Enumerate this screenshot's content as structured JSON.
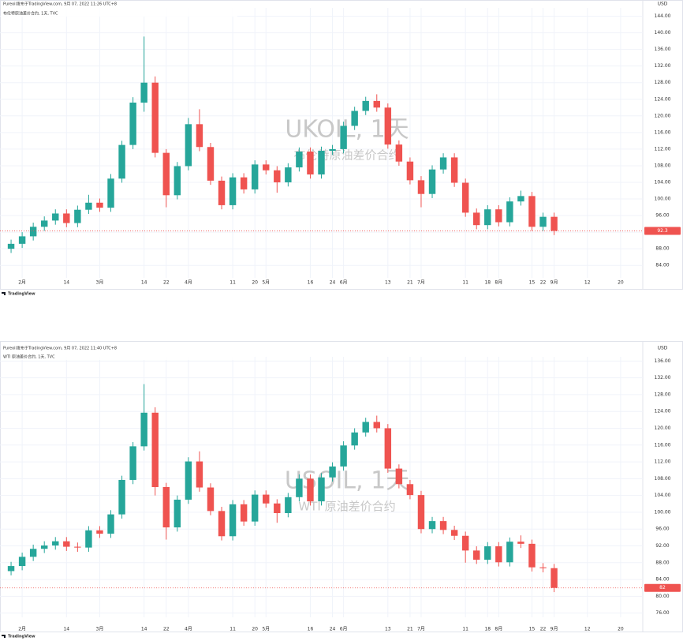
{
  "chart_data": [
    {
      "type": "candlestick",
      "title": "Pureoil发布于TradingView.com, 9月 07, 2022 11:26 UTC+8",
      "legend": "布伦特原油差价合约, 1天, TVC",
      "symbol": "UKOIL, 1天",
      "subtitle": "布伦特原油差价合约",
      "currency": "USD",
      "attribution": "TradingView",
      "up_color": "#26a69a",
      "down_color": "#ef5350",
      "grid": true,
      "candles": [
        [
          88.0,
          90.2,
          87.0,
          89.2
        ],
        [
          89.2,
          92.0,
          88.2,
          91.0
        ],
        [
          91.0,
          94.3,
          90.0,
          93.3
        ],
        [
          93.3,
          95.8,
          92.3,
          94.8
        ],
        [
          94.8,
          97.5,
          93.8,
          96.5
        ],
        [
          96.5,
          97.5,
          93.2,
          94.2
        ],
        [
          94.2,
          98.4,
          93.2,
          97.4
        ],
        [
          97.4,
          101.0,
          96.4,
          99.1
        ],
        [
          99.1,
          100.1,
          96.9,
          97.9
        ],
        [
          97.9,
          106.0,
          96.9,
          104.9
        ],
        [
          104.9,
          114.0,
          103.9,
          113.0
        ],
        [
          113.0,
          124.5,
          112.0,
          123.2
        ],
        [
          123.2,
          139.1,
          121.0,
          128.0
        ],
        [
          128.0,
          129.5,
          110.0,
          111.1
        ],
        [
          111.1,
          112.0,
          98.0,
          100.9
        ],
        [
          100.9,
          108.9,
          99.9,
          107.9
        ],
        [
          107.9,
          119.5,
          106.9,
          118.0
        ],
        [
          118.0,
          121.6,
          111.5,
          112.5
        ],
        [
          112.5,
          113.5,
          103.4,
          104.4
        ],
        [
          104.4,
          105.4,
          97.5,
          98.5
        ],
        [
          98.5,
          106.2,
          97.5,
          105.2
        ],
        [
          105.2,
          106.2,
          101.3,
          102.3
        ],
        [
          102.3,
          109.3,
          101.3,
          108.3
        ],
        [
          108.3,
          109.3,
          105.9,
          106.9
        ],
        [
          106.9,
          107.9,
          101.5,
          104.0
        ],
        [
          104.0,
          108.6,
          103.0,
          107.6
        ],
        [
          107.6,
          112.4,
          106.6,
          111.4
        ],
        [
          111.4,
          112.4,
          104.9,
          105.9
        ],
        [
          105.9,
          112.6,
          104.9,
          111.6
        ],
        [
          111.6,
          113.0,
          110.6,
          112.0
        ],
        [
          112.0,
          118.6,
          111.0,
          117.6
        ],
        [
          117.6,
          122.2,
          116.6,
          121.2
        ],
        [
          121.2,
          124.6,
          120.2,
          123.6
        ],
        [
          123.6,
          125.2,
          121.0,
          122.0
        ],
        [
          122.0,
          123.0,
          112.1,
          113.1
        ],
        [
          113.1,
          114.1,
          108.0,
          109.0
        ],
        [
          109.0,
          110.0,
          103.5,
          104.5
        ],
        [
          104.5,
          105.5,
          98.0,
          101.2
        ],
        [
          101.2,
          108.1,
          100.2,
          107.1
        ],
        [
          107.1,
          111.0,
          106.1,
          110.0
        ],
        [
          110.0,
          111.0,
          102.9,
          103.9
        ],
        [
          103.9,
          104.9,
          95.7,
          96.7
        ],
        [
          96.7,
          97.7,
          92.7,
          93.7
        ],
        [
          93.7,
          98.5,
          92.7,
          97.5
        ],
        [
          97.5,
          98.5,
          93.4,
          94.4
        ],
        [
          94.4,
          100.4,
          93.4,
          99.4
        ],
        [
          99.4,
          102.0,
          98.4,
          100.7
        ],
        [
          100.7,
          101.7,
          92.3,
          93.3
        ],
        [
          93.3,
          96.7,
          92.3,
          95.7
        ],
        [
          95.7,
          96.7,
          91.3,
          92.3
        ]
      ],
      "ylim": [
        81,
        146
      ],
      "yticks": [
        {
          "value": 84,
          "label": "84.00"
        },
        {
          "value": 88,
          "label": "88.00"
        },
        {
          "value": 92,
          "label": "92.00"
        },
        {
          "value": 96,
          "label": "96.00"
        },
        {
          "value": 100,
          "label": "100.00"
        },
        {
          "value": 104,
          "label": "104.00"
        },
        {
          "value": 108,
          "label": "108.00"
        },
        {
          "value": 112,
          "label": "112.00"
        },
        {
          "value": 116,
          "label": "116.00"
        },
        {
          "value": 120,
          "label": "120.00"
        },
        {
          "value": 124,
          "label": "124.00"
        },
        {
          "value": 128,
          "label": "128.00"
        },
        {
          "value": 132,
          "label": "132.00"
        },
        {
          "value": 136,
          "label": "136.00"
        },
        {
          "value": 140,
          "label": "140.00"
        },
        {
          "value": 144,
          "label": "144.00"
        }
      ],
      "xlim": [
        -1,
        57
      ],
      "xticks": [
        {
          "value": 1,
          "label": "2月"
        },
        {
          "value": 5,
          "label": "14"
        },
        {
          "value": 8,
          "label": "3月"
        },
        {
          "value": 12,
          "label": "14"
        },
        {
          "value": 14,
          "label": "22"
        },
        {
          "value": 16,
          "label": "4月"
        },
        {
          "value": 20,
          "label": "11"
        },
        {
          "value": 22,
          "label": "20"
        },
        {
          "value": 23,
          "label": "5月"
        },
        {
          "value": 27,
          "label": "16"
        },
        {
          "value": 29,
          "label": "24"
        },
        {
          "value": 30,
          "label": "6月"
        },
        {
          "value": 34,
          "label": "13"
        },
        {
          "value": 36,
          "label": "21"
        },
        {
          "value": 37,
          "label": "7月"
        },
        {
          "value": 41,
          "label": "11"
        },
        {
          "value": 43,
          "label": "18"
        },
        {
          "value": 44,
          "label": "8月"
        },
        {
          "value": 47,
          "label": "15"
        },
        {
          "value": 48,
          "label": "22"
        },
        {
          "value": 49,
          "label": "9月"
        },
        {
          "value": 52,
          "label": "12"
        },
        {
          "value": 55,
          "label": "20"
        }
      ]
    },
    {
      "type": "candlestick",
      "title": "Pureoil发布于TradingView.com, 9月 07, 2022 11:40 UTC+8",
      "legend": "WTI 原油差价合约, 1天, TVC",
      "symbol": "USOIL, 1天",
      "subtitle": "WTI 原油差价合约",
      "currency": "USD",
      "attribution": "TradingView",
      "up_color": "#26a69a",
      "down_color": "#ef5350",
      "grid": true,
      "candles": [
        [
          86.0,
          88.2,
          85.0,
          87.2
        ],
        [
          87.2,
          90.4,
          86.2,
          89.4
        ],
        [
          89.4,
          92.3,
          88.4,
          91.3
        ],
        [
          91.3,
          93.1,
          90.3,
          92.1
        ],
        [
          92.1,
          94.1,
          91.1,
          93.1
        ],
        [
          93.1,
          94.1,
          90.8,
          91.8
        ],
        [
          91.8,
          92.8,
          90.6,
          91.6
        ],
        [
          91.6,
          96.7,
          90.6,
          95.7
        ],
        [
          95.7,
          96.7,
          93.9,
          94.9
        ],
        [
          94.9,
          100.5,
          93.9,
          99.5
        ],
        [
          99.5,
          108.7,
          98.5,
          107.7
        ],
        [
          107.7,
          116.7,
          106.7,
          115.7
        ],
        [
          115.7,
          130.5,
          114.7,
          123.7
        ],
        [
          123.7,
          125.0,
          104.0,
          106.0
        ],
        [
          106.0,
          107.0,
          93.5,
          96.4
        ],
        [
          96.4,
          104.0,
          95.4,
          103.0
        ],
        [
          103.0,
          113.1,
          102.0,
          112.1
        ],
        [
          112.1,
          114.5,
          104.9,
          105.9
        ],
        [
          105.9,
          106.9,
          99.3,
          100.3
        ],
        [
          100.3,
          101.3,
          93.3,
          94.3
        ],
        [
          94.3,
          102.9,
          93.3,
          101.9
        ],
        [
          101.9,
          102.9,
          96.8,
          97.8
        ],
        [
          97.8,
          105.2,
          96.8,
          104.2
        ],
        [
          104.2,
          105.2,
          101.1,
          102.1
        ],
        [
          102.1,
          103.1,
          97.5,
          99.8
        ],
        [
          99.8,
          104.6,
          98.8,
          103.6
        ],
        [
          103.6,
          109.0,
          102.6,
          108.0
        ],
        [
          108.0,
          109.0,
          101.6,
          102.6
        ],
        [
          102.6,
          109.3,
          101.6,
          108.3
        ],
        [
          108.3,
          111.9,
          107.3,
          110.9
        ],
        [
          110.9,
          116.9,
          109.9,
          115.9
        ],
        [
          115.9,
          120.0,
          114.9,
          119.0
        ],
        [
          119.0,
          122.5,
          118.0,
          121.5
        ],
        [
          121.5,
          123.0,
          119.0,
          120.0
        ],
        [
          120.0,
          121.0,
          109.4,
          110.4
        ],
        [
          110.4,
          111.4,
          105.7,
          106.7
        ],
        [
          106.7,
          107.7,
          103.1,
          104.1
        ],
        [
          104.1,
          105.1,
          95.0,
          96.0
        ],
        [
          96.0,
          98.9,
          95.0,
          97.9
        ],
        [
          97.9,
          98.9,
          94.8,
          95.8
        ],
        [
          95.8,
          96.8,
          93.4,
          94.4
        ],
        [
          94.4,
          95.4,
          88.0,
          90.9
        ],
        [
          90.9,
          91.9,
          87.7,
          88.7
        ],
        [
          88.7,
          92.9,
          87.7,
          91.9
        ],
        [
          91.9,
          92.9,
          87.1,
          88.1
        ],
        [
          88.1,
          94.0,
          87.1,
          93.0
        ],
        [
          93.0,
          94.5,
          91.5,
          92.5
        ],
        [
          92.5,
          93.5,
          85.9,
          86.9
        ],
        [
          86.9,
          87.9,
          85.7,
          86.7
        ],
        [
          86.7,
          87.7,
          81.0,
          82.0
        ]
      ],
      "ylim": [
        75,
        137
      ],
      "yticks": [
        {
          "value": 76,
          "label": "76.00"
        },
        {
          "value": 80,
          "label": "80.00"
        },
        {
          "value": 84,
          "label": "84.00"
        },
        {
          "value": 88,
          "label": "88.00"
        },
        {
          "value": 92,
          "label": "92.00"
        },
        {
          "value": 96,
          "label": "96.00"
        },
        {
          "value": 100,
          "label": "100.00"
        },
        {
          "value": 104,
          "label": "104.00"
        },
        {
          "value": 108,
          "label": "108.00"
        },
        {
          "value": 112,
          "label": "112.00"
        },
        {
          "value": 116,
          "label": "116.00"
        },
        {
          "value": 120,
          "label": "120.00"
        },
        {
          "value": 124,
          "label": "124.00"
        },
        {
          "value": 128,
          "label": "128.00"
        },
        {
          "value": 132,
          "label": "132.00"
        },
        {
          "value": 136,
          "label": "136.00"
        }
      ],
      "xlim": [
        -1,
        57
      ],
      "xticks": [
        {
          "value": 1,
          "label": "2月"
        },
        {
          "value": 5,
          "label": "14"
        },
        {
          "value": 8,
          "label": "3月"
        },
        {
          "value": 12,
          "label": "14"
        },
        {
          "value": 14,
          "label": "22"
        },
        {
          "value": 16,
          "label": "4月"
        },
        {
          "value": 20,
          "label": "11"
        },
        {
          "value": 22,
          "label": "20"
        },
        {
          "value": 23,
          "label": "5月"
        },
        {
          "value": 27,
          "label": "16"
        },
        {
          "value": 29,
          "label": "24"
        },
        {
          "value": 30,
          "label": "6月"
        },
        {
          "value": 34,
          "label": "13"
        },
        {
          "value": 36,
          "label": "21"
        },
        {
          "value": 37,
          "label": "7月"
        },
        {
          "value": 41,
          "label": "11"
        },
        {
          "value": 43,
          "label": "18"
        },
        {
          "value": 44,
          "label": "8月"
        },
        {
          "value": 47,
          "label": "15"
        },
        {
          "value": 48,
          "label": "22"
        },
        {
          "value": 49,
          "label": "9月"
        },
        {
          "value": 52,
          "label": "12"
        },
        {
          "value": 55,
          "label": "20"
        }
      ]
    }
  ]
}
